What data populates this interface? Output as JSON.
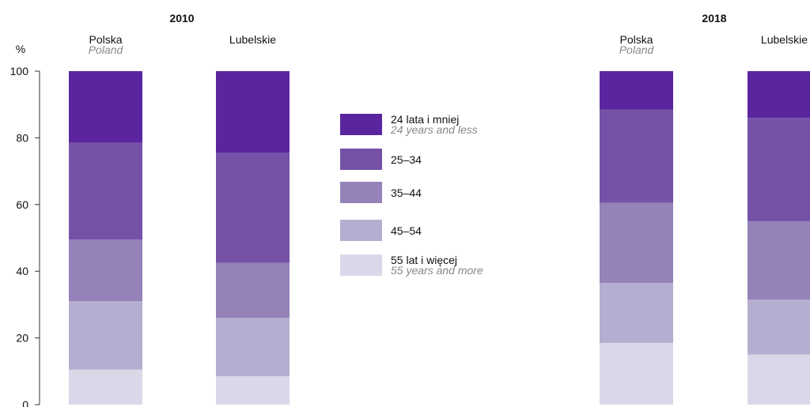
{
  "chart_data": {
    "type": "bar",
    "stacked": true,
    "unit_label": "%",
    "ylim": [
      0,
      100
    ],
    "yticks": [
      0,
      20,
      40,
      60,
      80,
      100
    ],
    "panels": [
      {
        "title": "2010",
        "categories": [
          {
            "label": "Polska",
            "sublabel": "Poland"
          },
          {
            "label": "Lubelskie",
            "sublabel": ""
          }
        ],
        "series": [
          {
            "name": "55  lat i więcej",
            "values": [
              10.5,
              8.5
            ]
          },
          {
            "name": "45–54",
            "values": [
              20.5,
              17.5
            ]
          },
          {
            "name": "35–44",
            "values": [
              18.5,
              16.5
            ]
          },
          {
            "name": "25–34",
            "values": [
              29.0,
              33.0
            ]
          },
          {
            "name": "24 lata i mniej",
            "values": [
              21.5,
              24.5
            ]
          }
        ]
      },
      {
        "title": "2018",
        "categories": [
          {
            "label": "Polska",
            "sublabel": "Poland"
          },
          {
            "label": "Lubelskie",
            "sublabel": ""
          }
        ],
        "series": [
          {
            "name": "55  lat i więcej",
            "values": [
              18.5,
              15.0
            ]
          },
          {
            "name": "45–54",
            "values": [
              18.0,
              16.5
            ]
          },
          {
            "name": "35–44",
            "values": [
              24.0,
              23.5
            ]
          },
          {
            "name": "25–34",
            "values": [
              28.0,
              31.0
            ]
          },
          {
            "name": "24 lata i mniej",
            "values": [
              11.5,
              14.0
            ]
          }
        ]
      }
    ],
    "legend": {
      "placement": "center",
      "items": [
        {
          "label": "24 lata i mniej",
          "sublabel": "24 years and less",
          "color": "#5b259f"
        },
        {
          "label": "25–34",
          "sublabel": "",
          "color": "#7552a8"
        },
        {
          "label": "35–44",
          "sublabel": "",
          "color": "#9582b8"
        },
        {
          "label": "45–54",
          "sublabel": "",
          "color": "#b5aed0"
        },
        {
          "label": "55  lat i więcej",
          "sublabel": "55 years and more",
          "color": "#dad8e8"
        }
      ]
    },
    "colors": {
      "55  lat i więcej": "#dad8e8",
      "45–54": "#b5aed0",
      "35–44": "#9582b8",
      "25–34": "#7552a8",
      "24 lata i mniej": "#5b259f"
    }
  }
}
